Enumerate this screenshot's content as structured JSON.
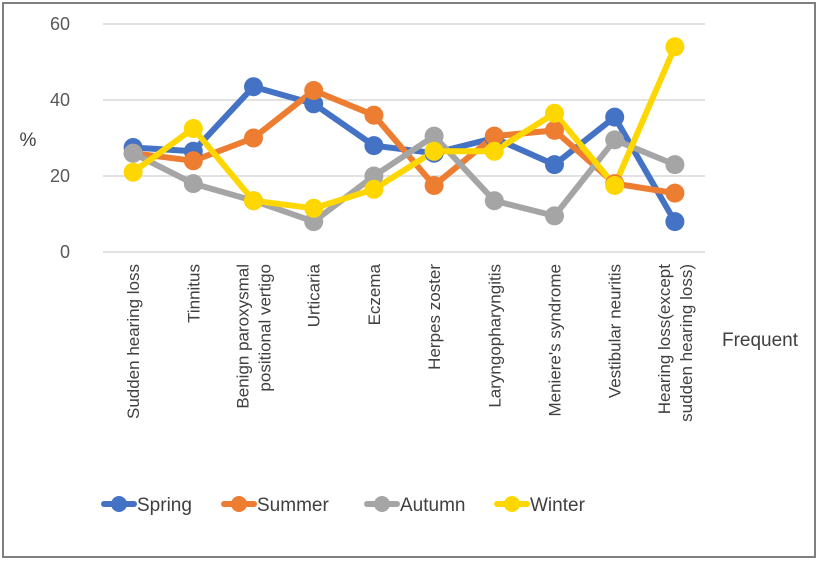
{
  "chart_data": {
    "type": "line",
    "title": "",
    "xlabel": "Frequent",
    "ylabel": "%",
    "ylim": [
      0,
      60
    ],
    "yticks": [
      0,
      20,
      40,
      60
    ],
    "grid": true,
    "legend_position": "bottom",
    "categories": [
      [
        "Sudden hearing loss"
      ],
      [
        "Tinnitus"
      ],
      [
        "Benign paroxysmal",
        "positional vertigo"
      ],
      [
        "Urticaria"
      ],
      [
        "Eczema"
      ],
      [
        "Herpes zoster"
      ],
      [
        "Laryngopharyngitis"
      ],
      [
        "Meniere's syndrome"
      ],
      [
        "Vestibular neuritis"
      ],
      [
        "Hearing loss(except",
        "sudden hearing loss)"
      ]
    ],
    "series": [
      {
        "name": "Spring",
        "color": "#4472C4",
        "values": [
          27.5,
          26.5,
          43.5,
          39,
          28,
          26,
          30,
          23,
          35.5,
          8
        ]
      },
      {
        "name": "Summer",
        "color": "#ED7D31",
        "values": [
          26,
          24,
          30,
          42.5,
          36,
          17.5,
          30.5,
          32,
          18,
          15.5
        ]
      },
      {
        "name": "Autumn",
        "color": "#A5A5A5",
        "values": [
          26,
          18,
          13.5,
          8,
          20,
          30.5,
          13.5,
          9.5,
          29.5,
          23
        ]
      },
      {
        "name": "Winter",
        "color": "#FFD700",
        "values": [
          21,
          32.5,
          13.5,
          11.5,
          16.5,
          26.5,
          26.5,
          36.5,
          17.5,
          54
        ]
      }
    ]
  }
}
